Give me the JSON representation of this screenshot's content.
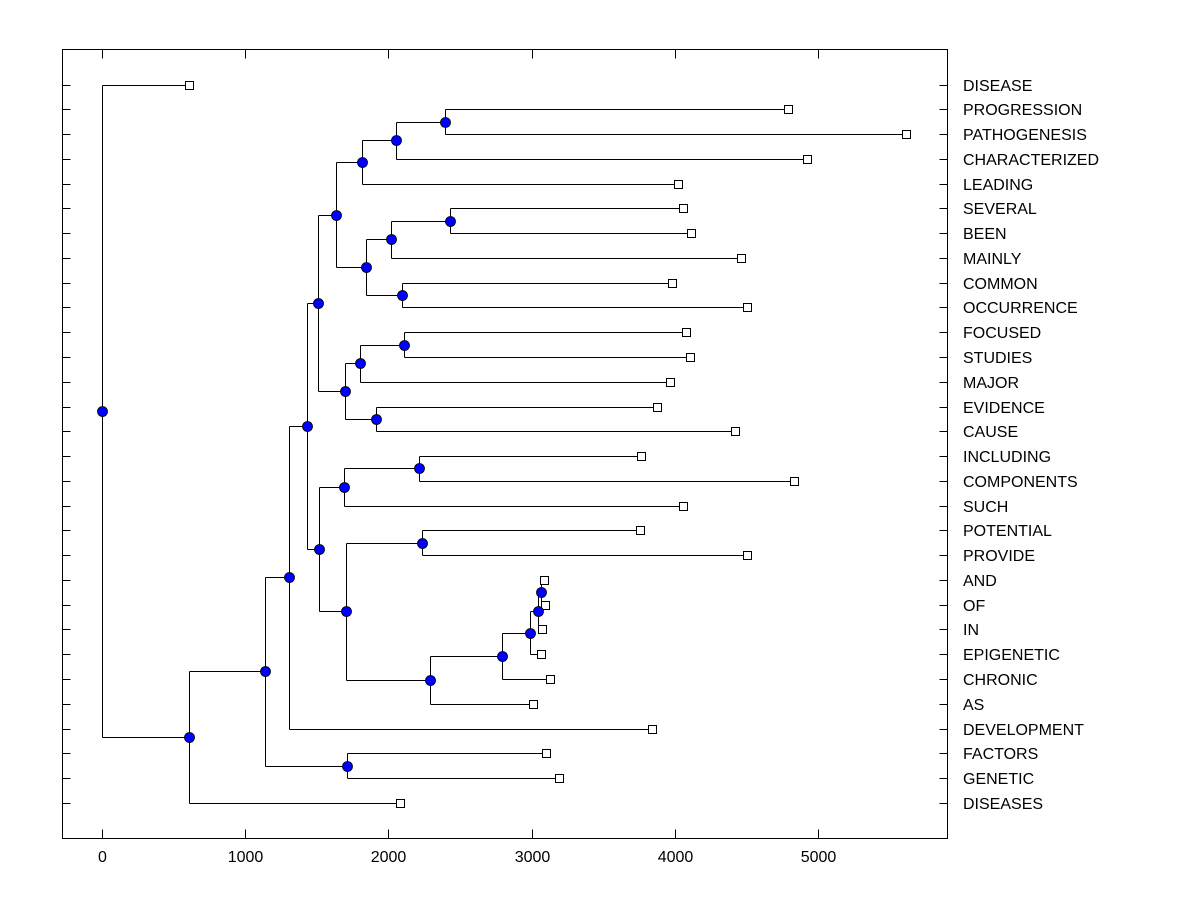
{
  "chart_data": {
    "type": "dendrogram",
    "title": "",
    "xlabel": "",
    "ylabel": "",
    "xlim": [
      -280,
      5900
    ],
    "xticks": [
      0,
      1000,
      2000,
      3000,
      4000,
      5000
    ],
    "xtick_labels": [
      "0",
      "1000",
      "2000",
      "3000",
      "4000",
      "5000"
    ],
    "grid": false,
    "legend": "none",
    "node_color": "#0000ff",
    "leaves": [
      {
        "label": "DISEASE",
        "value": 610
      },
      {
        "label": "PROGRESSION",
        "value": 4790
      },
      {
        "label": "PATHOGENESIS",
        "value": 5615
      },
      {
        "label": "CHARACTERIZED",
        "value": 4925
      },
      {
        "label": "LEADING",
        "value": 4020
      },
      {
        "label": "SEVERAL",
        "value": 4055
      },
      {
        "label": "BEEN",
        "value": 4115
      },
      {
        "label": "MAINLY",
        "value": 4460
      },
      {
        "label": "COMMON",
        "value": 3980
      },
      {
        "label": "OCCURRENCE",
        "value": 4505
      },
      {
        "label": "FOCUSED",
        "value": 4080
      },
      {
        "label": "STUDIES",
        "value": 4105
      },
      {
        "label": "MAJOR",
        "value": 3965
      },
      {
        "label": "EVIDENCE",
        "value": 3875
      },
      {
        "label": "CAUSE",
        "value": 4420
      },
      {
        "label": "INCLUDING",
        "value": 3765
      },
      {
        "label": "COMPONENTS",
        "value": 4830
      },
      {
        "label": "SUCH",
        "value": 4055
      },
      {
        "label": "POTENTIAL",
        "value": 3755
      },
      {
        "label": "PROVIDE",
        "value": 4505
      },
      {
        "label": "AND",
        "value": 3085
      },
      {
        "label": "OF",
        "value": 3095
      },
      {
        "label": "IN",
        "value": 3075
      },
      {
        "label": "EPIGENETIC",
        "value": 3065
      },
      {
        "label": "CHRONIC",
        "value": 3130
      },
      {
        "label": "AS",
        "value": 3010
      },
      {
        "label": "DEVELOPMENT",
        "value": 3840
      },
      {
        "label": "FACTORS",
        "value": 3100
      },
      {
        "label": "GENETIC",
        "value": 3190
      },
      {
        "label": "DISEASES",
        "value": 2080
      }
    ],
    "nodes": [
      {
        "id": "root",
        "value": 0,
        "children": [
          "L0",
          "n_main"
        ]
      },
      {
        "id": "n_main",
        "value": 610,
        "children": [
          "n1",
          "L29"
        ]
      },
      {
        "id": "n1",
        "value": 1140,
        "children": [
          "n2",
          "n27"
        ]
      },
      {
        "id": "n2",
        "value": 1305,
        "children": [
          "n3",
          "L26"
        ]
      },
      {
        "id": "n3",
        "value": 1430,
        "children": [
          "n4",
          "n17"
        ]
      },
      {
        "id": "n4",
        "value": 1510,
        "children": [
          "n5",
          "n13"
        ]
      },
      {
        "id": "n5",
        "value": 1635,
        "children": [
          "n6",
          "n9"
        ]
      },
      {
        "id": "n6",
        "value": 1815,
        "children": [
          "n7",
          "L4"
        ]
      },
      {
        "id": "n7",
        "value": 2055,
        "children": [
          "n8",
          "L3"
        ]
      },
      {
        "id": "n8",
        "value": 2395,
        "children": [
          "L1",
          "L2"
        ]
      },
      {
        "id": "n9",
        "value": 1845,
        "children": [
          "n10",
          "n12"
        ]
      },
      {
        "id": "n10",
        "value": 2020,
        "children": [
          "n11",
          "L7"
        ]
      },
      {
        "id": "n11",
        "value": 2430,
        "children": [
          "L5",
          "L6"
        ]
      },
      {
        "id": "n12",
        "value": 2095,
        "children": [
          "L8",
          "L9"
        ]
      },
      {
        "id": "n13",
        "value": 1695,
        "children": [
          "n14",
          "n16"
        ]
      },
      {
        "id": "n14",
        "value": 1800,
        "children": [
          "n15",
          "L12"
        ]
      },
      {
        "id": "n15",
        "value": 2110,
        "children": [
          "L10",
          "L11"
        ]
      },
      {
        "id": "n16",
        "value": 1915,
        "children": [
          "L13",
          "L14"
        ]
      },
      {
        "id": "n17",
        "value": 1515,
        "children": [
          "n18",
          "n20"
        ]
      },
      {
        "id": "n18",
        "value": 1690,
        "children": [
          "n19",
          "L17"
        ]
      },
      {
        "id": "n19",
        "value": 2215,
        "children": [
          "L15",
          "L16"
        ]
      },
      {
        "id": "n20",
        "value": 1705,
        "children": [
          "n21",
          "n22"
        ]
      },
      {
        "id": "n21",
        "value": 2235,
        "children": [
          "L18",
          "L19"
        ]
      },
      {
        "id": "n22",
        "value": 2290,
        "children": [
          "n23",
          "L25"
        ]
      },
      {
        "id": "n23",
        "value": 2795,
        "children": [
          "n24",
          "L24"
        ]
      },
      {
        "id": "n24",
        "value": 2990,
        "children": [
          "n25",
          "L23"
        ]
      },
      {
        "id": "n25",
        "value": 3045,
        "children": [
          "n26",
          "L22"
        ]
      },
      {
        "id": "n26",
        "value": 3065,
        "children": [
          "L20",
          "L21"
        ]
      },
      {
        "id": "n27",
        "value": 1710,
        "children": [
          "L27",
          "L28"
        ]
      }
    ]
  }
}
